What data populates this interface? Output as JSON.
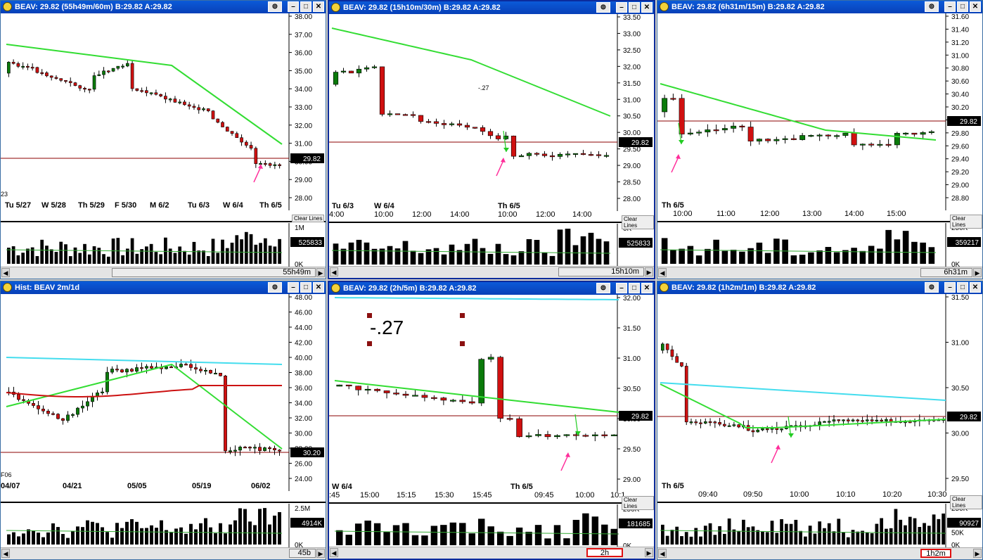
{
  "symbol_last": "29.82",
  "windows": [
    {
      "title": "BEAV: 29.82 (55h49m/60m)  B:29.82 A:29.82",
      "ticks": [
        "38.00",
        "37.00",
        "36.00",
        "35.00",
        "34.00",
        "33.00",
        "32.00",
        "31.00",
        "30.00",
        "29.00",
        "28.00"
      ],
      "price_tag": "29.82",
      "xlabels": [
        "Tu 5/27",
        "W  5/28",
        "Th 5/29",
        "F   5/30",
        "M  6/2",
        "Tu 6/3",
        "W  6/4",
        "Th 6/5"
      ],
      "left_label": "23",
      "vol_ticks": [
        "1M",
        "0K"
      ],
      "vol_tag": "525833",
      "scroll_label": "55h49m",
      "clear_lines": "Clear Lines"
    },
    {
      "title": "BEAV: 29.82 (15h10m/30m)  B:29.82 A:29.82",
      "ticks": [
        "33.50",
        "33.00",
        "32.50",
        "32.00",
        "31.50",
        "31.00",
        "30.50",
        "30.00",
        "29.50",
        "29.00",
        "28.50",
        "28.00"
      ],
      "price_tag": "29.82",
      "xlabels": [
        "Tu 6/3",
        "W  6/4",
        "Th 6/5"
      ],
      "time_labels": [
        "4:00",
        "10:00",
        "12:00",
        "14:00",
        "10:00",
        "12:00",
        "14:00"
      ],
      "annotation": "-.27",
      "vol_ticks": [
        "0K"
      ],
      "vol_tag": "525833",
      "scroll_label": "15h10m",
      "clear_lines": "Clear Lines"
    },
    {
      "title": "BEAV: 29.82 (6h31m/15m)  B:29.82 A:29.82",
      "ticks": [
        "31.60",
        "31.40",
        "31.20",
        "31.00",
        "30.80",
        "30.60",
        "30.40",
        "30.20",
        "30.00",
        "29.80",
        "29.60",
        "29.40",
        "29.20",
        "29.00",
        "28.80"
      ],
      "price_tag": "29.82",
      "xlabels": [
        "Th 6/5"
      ],
      "time_labels": [
        "10:00",
        "11:00",
        "12:00",
        "13:00",
        "14:00",
        "15:00"
      ],
      "vol_ticks": [
        "250K",
        "0K"
      ],
      "vol_tag": "359217",
      "scroll_label": "6h31m",
      "clear_lines": "Clear Lines"
    },
    {
      "title": "Hist: BEAV 2m/1d",
      "ticks": [
        "48.00",
        "46.00",
        "44.00",
        "42.00",
        "40.00",
        "38.00",
        "36.00",
        "34.00",
        "32.00",
        "30.00",
        "28.00",
        "26.00",
        "24.00"
      ],
      "price_tag": "30.20",
      "xlabels": [
        "04/07",
        "04/21",
        "05/05",
        "05/19",
        "06/02"
      ],
      "left_label": "F06",
      "vol_ticks": [
        "2.5M",
        "0K"
      ],
      "vol_tag": "4914K",
      "scroll_label": "45b"
    },
    {
      "title": "BEAV: 29.82 (2h/5m)  B:29.82 A:29.82",
      "ticks": [
        "32.00",
        "31.50",
        "31.00",
        "30.50",
        "30.00",
        "29.50",
        "29.00"
      ],
      "price_tag": "29.82",
      "xlabels": [
        "W  6/4",
        "Th 6/5"
      ],
      "time_labels": [
        ":45",
        "15:00",
        "15:15",
        "15:30",
        "15:45",
        "09:45",
        "10:00",
        "10:1"
      ],
      "annotation": "-.27",
      "vol_ticks": [
        "250K",
        "0K"
      ],
      "vol_tag": "181685",
      "scroll_label": "2h",
      "clear_lines": "Clear Lines"
    },
    {
      "title": "BEAV: 29.82 (1h2m/1m)  B:29.82 A:29.82",
      "ticks": [
        "31.50",
        "31.00",
        "30.50",
        "30.00",
        "29.50"
      ],
      "price_tag": "29.82",
      "xlabels": [
        "Th 6/5"
      ],
      "time_labels": [
        "09:40",
        "09:50",
        "10:00",
        "10:10",
        "10:20",
        "10:30"
      ],
      "vol_ticks": [
        "250K",
        "100K",
        "50K",
        "0K"
      ],
      "vol_tag": "90927",
      "scroll_label": "1h2m",
      "clear_lines": "Clear Lines"
    }
  ],
  "colors": {
    "up": "#0a7a0a",
    "down": "#d01010",
    "ma_green": "#33dd33",
    "ma_cyan": "#44ddee",
    "ma_red": "#cc1111",
    "line_red": "#8b0000",
    "arrow": "#ff2d9a",
    "titlebar": "#0b4fcc"
  },
  "chart_data": [
    {
      "type": "candlestick",
      "title": "BEAV 60m",
      "ylim": [
        28,
        38
      ],
      "last": 29.82
    },
    {
      "type": "candlestick",
      "title": "BEAV 30m",
      "ylim": [
        28,
        33.5
      ],
      "last": 29.82
    },
    {
      "type": "candlestick",
      "title": "BEAV 15m",
      "ylim": [
        28.8,
        31.6
      ],
      "last": 29.82
    },
    {
      "type": "candlestick",
      "title": "Hist: BEAV 2m/1d",
      "ylim": [
        24,
        48
      ],
      "last": 30.2
    },
    {
      "type": "candlestick",
      "title": "BEAV 5m",
      "ylim": [
        29,
        32
      ],
      "last": 29.82
    },
    {
      "type": "candlestick",
      "title": "BEAV 1m",
      "ylim": [
        29.3,
        31.7
      ],
      "last": 29.82
    }
  ]
}
